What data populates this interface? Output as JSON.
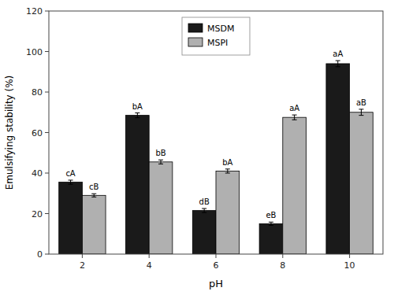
{
  "chart_data": {
    "type": "bar",
    "categories": [
      2,
      4,
      6,
      8,
      10
    ],
    "series": [
      {
        "name": "MSDM",
        "color": "#1a1a1a",
        "values": [
          35.5,
          68.5,
          21.5,
          15.0,
          94.0
        ],
        "errors": [
          1.0,
          1.2,
          1.0,
          0.8,
          1.5
        ],
        "annotations": [
          "cA",
          "bA",
          "dB",
          "eB",
          "aA"
        ]
      },
      {
        "name": "MSPI",
        "color": "#b0b0b0",
        "values": [
          29.0,
          45.5,
          41.0,
          67.5,
          70.0
        ],
        "errors": [
          0.8,
          1.0,
          1.0,
          1.2,
          1.5
        ],
        "annotations": [
          "cB",
          "bB",
          "bA",
          "aA",
          "aB"
        ]
      }
    ],
    "xlabel": "pH",
    "ylabel": "Emulsifying stability (%)",
    "ylim": [
      0,
      120
    ],
    "yticks": [
      0,
      20,
      40,
      60,
      80,
      100,
      120
    ],
    "grid": false,
    "legend": "upper center"
  }
}
